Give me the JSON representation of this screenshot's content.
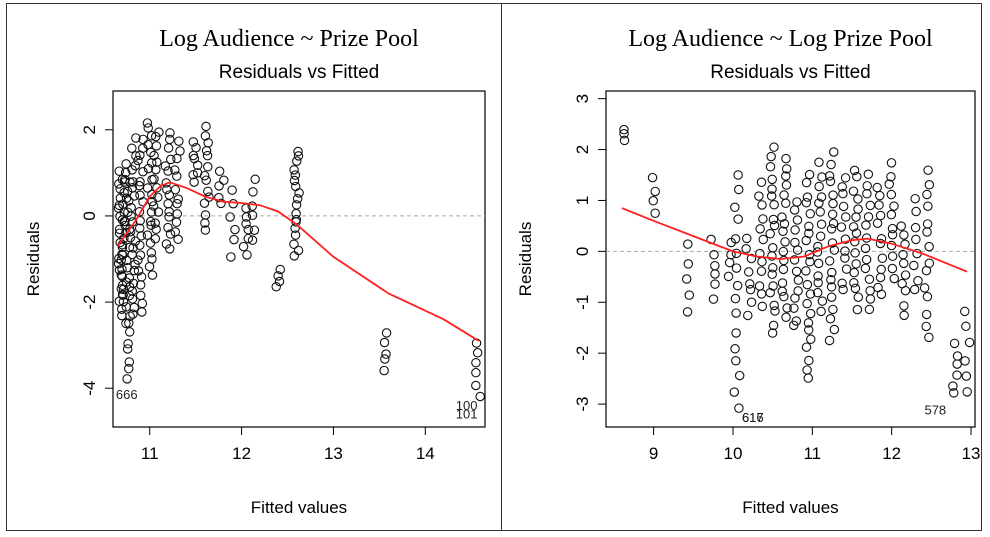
{
  "chart_data": [
    {
      "type": "scatter",
      "title": "Log Audience ~ Prize Pool",
      "subtitle": "Residuals vs Fitted",
      "xlabel": "Fitted values",
      "ylabel": "Residuals",
      "xlim": [
        10.6,
        14.65
      ],
      "ylim": [
        -4.9,
        2.9
      ],
      "xticks": [
        11,
        12,
        13,
        14
      ],
      "yticks": [
        -4,
        -2,
        0,
        2
      ],
      "reference_line": 0,
      "annotations": [
        {
          "text": "666",
          "x": 10.75,
          "y": -4.25
        },
        {
          "text": "100",
          "x": 14.45,
          "y": -4.5
        },
        {
          "text": "101",
          "x": 14.45,
          "y": -4.7
        }
      ],
      "clusters": [
        {
          "x": 10.68,
          "y_min": -2.0,
          "y_max": 1.0,
          "n": 22
        },
        {
          "x": 10.72,
          "y_min": -2.5,
          "y_max": 0.9,
          "n": 22
        },
        {
          "x": 10.76,
          "y_min": -3.8,
          "y_max": 1.2,
          "n": 24
        },
        {
          "x": 10.82,
          "y_min": -2.3,
          "y_max": 1.8,
          "n": 22
        },
        {
          "x": 10.9,
          "y_min": -2.2,
          "y_max": 1.8,
          "n": 22
        },
        {
          "x": 11.0,
          "y_min": -1.4,
          "y_max": 2.2,
          "n": 20
        },
        {
          "x": 11.07,
          "y_min": -0.5,
          "y_max": 2.0,
          "n": 14
        },
        {
          "x": 11.2,
          "y_min": -0.8,
          "y_max": 1.9,
          "n": 16
        },
        {
          "x": 11.3,
          "y_min": -0.6,
          "y_max": 1.7,
          "n": 12
        },
        {
          "x": 11.5,
          "y_min": 0.8,
          "y_max": 1.7,
          "n": 8
        },
        {
          "x": 11.62,
          "y_min": -0.3,
          "y_max": 2.1,
          "n": 14
        },
        {
          "x": 11.78,
          "y_min": 0.3,
          "y_max": 1.0,
          "n": 5
        },
        {
          "x": 11.9,
          "y_min": -0.9,
          "y_max": 0.6,
          "n": 6
        },
        {
          "x": 12.05,
          "y_min": -0.9,
          "y_max": 0.2,
          "n": 7
        },
        {
          "x": 12.12,
          "y_min": -0.6,
          "y_max": 0.8,
          "n": 6
        },
        {
          "x": 12.4,
          "y_min": -1.7,
          "y_max": -1.2,
          "n": 4
        },
        {
          "x": 12.6,
          "y_min": -0.9,
          "y_max": 1.5,
          "n": 18
        },
        {
          "x": 13.58,
          "y_min": -3.6,
          "y_max": -2.7,
          "n": 5
        },
        {
          "x": 14.58,
          "y_min": -4.2,
          "y_max": -2.9,
          "n": 6
        }
      ],
      "trend": {
        "x": [
          10.65,
          10.85,
          11.0,
          11.12,
          11.22,
          11.4,
          11.6,
          11.8,
          12.0,
          12.2,
          12.4,
          12.6,
          13.0,
          13.6,
          14.2,
          14.58
        ],
        "y": [
          -0.7,
          -0.1,
          0.45,
          0.7,
          0.78,
          0.65,
          0.45,
          0.33,
          0.3,
          0.25,
          0.1,
          -0.2,
          -0.95,
          -1.8,
          -2.4,
          -2.9
        ]
      }
    },
    {
      "type": "scatter",
      "title": "Log Audience ~ Log Prize Pool",
      "subtitle": "Residuals vs Fitted",
      "xlabel": "Fitted values",
      "ylabel": "Residuals",
      "xlim": [
        8.4,
        13.05
      ],
      "ylim": [
        -3.45,
        3.15
      ],
      "xticks": [
        9,
        10,
        11,
        12,
        13
      ],
      "yticks": [
        -3,
        -2,
        -1,
        0,
        1,
        2,
        3
      ],
      "reference_line": 0,
      "annotations": [
        {
          "text": "616",
          "x": 10.25,
          "y": -3.35
        },
        {
          "text": "617",
          "x": 10.25,
          "y": -3.35
        },
        {
          "text": "578",
          "x": 12.55,
          "y": -3.2
        }
      ],
      "clusters": [
        {
          "x": 8.6,
          "y_min": 2.2,
          "y_max": 2.4,
          "n": 3
        },
        {
          "x": 9.0,
          "y_min": 0.8,
          "y_max": 1.4,
          "n": 4
        },
        {
          "x": 9.45,
          "y_min": -1.2,
          "y_max": 0.1,
          "n": 5
        },
        {
          "x": 9.75,
          "y_min": -0.9,
          "y_max": 0.2,
          "n": 6
        },
        {
          "x": 9.95,
          "y_min": -0.5,
          "y_max": 0.2,
          "n": 4
        },
        {
          "x": 10.05,
          "y_min": -3.1,
          "y_max": 1.5,
          "n": 16
        },
        {
          "x": 10.2,
          "y_min": -1.2,
          "y_max": 0.2,
          "n": 8
        },
        {
          "x": 10.35,
          "y_min": -1.1,
          "y_max": 1.3,
          "n": 12
        },
        {
          "x": 10.5,
          "y_min": -1.6,
          "y_max": 2.0,
          "n": 20
        },
        {
          "x": 10.65,
          "y_min": -1.3,
          "y_max": 1.8,
          "n": 18
        },
        {
          "x": 10.8,
          "y_min": -1.5,
          "y_max": 1.0,
          "n": 14
        },
        {
          "x": 10.95,
          "y_min": -2.5,
          "y_max": 1.5,
          "n": 22
        },
        {
          "x": 11.1,
          "y_min": -1.2,
          "y_max": 1.7,
          "n": 16
        },
        {
          "x": 11.25,
          "y_min": -1.7,
          "y_max": 1.9,
          "n": 20
        },
        {
          "x": 11.4,
          "y_min": -0.8,
          "y_max": 1.5,
          "n": 12
        },
        {
          "x": 11.55,
          "y_min": -1.1,
          "y_max": 1.6,
          "n": 16
        },
        {
          "x": 11.7,
          "y_min": -1.2,
          "y_max": 1.5,
          "n": 14
        },
        {
          "x": 11.85,
          "y_min": -0.9,
          "y_max": 1.3,
          "n": 12
        },
        {
          "x": 12.0,
          "y_min": -0.5,
          "y_max": 1.7,
          "n": 12
        },
        {
          "x": 12.15,
          "y_min": -1.2,
          "y_max": 0.5,
          "n": 10
        },
        {
          "x": 12.3,
          "y_min": -0.8,
          "y_max": 1.0,
          "n": 8
        },
        {
          "x": 12.45,
          "y_min": -1.7,
          "y_max": 1.6,
          "n": 14
        },
        {
          "x": 12.8,
          "y_min": -2.8,
          "y_max": -1.8,
          "n": 6
        },
        {
          "x": 12.95,
          "y_min": -2.7,
          "y_max": -1.2,
          "n": 6
        }
      ],
      "trend": {
        "x": [
          8.6,
          9.0,
          9.5,
          10.0,
          10.3,
          10.6,
          10.9,
          11.2,
          11.5,
          11.7,
          12.0,
          12.4,
          12.95
        ],
        "y": [
          0.85,
          0.6,
          0.3,
          0.0,
          -0.1,
          -0.15,
          -0.1,
          0.1,
          0.22,
          0.25,
          0.15,
          -0.05,
          -0.4
        ]
      }
    }
  ],
  "colors": {
    "points": "#111111",
    "trend": "#ff2020",
    "reference": "#aaaaaa"
  }
}
